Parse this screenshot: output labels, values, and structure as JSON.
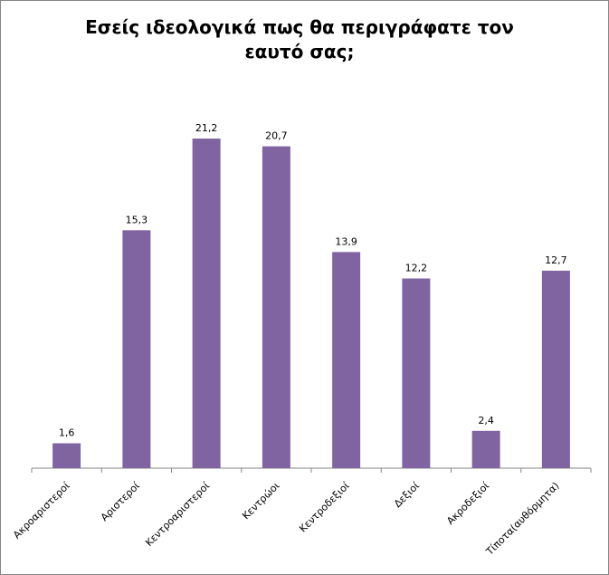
{
  "chart_data": {
    "type": "bar",
    "title": "Εσείς ιδεολογικά πως θα περιγράφατε τον εαυτό σας;",
    "categories": [
      "Ακροαριστεροί",
      "Αριστεροί",
      "Κεντροαριστεροί",
      "Κεντρώοι",
      "Κεντροδεξιοί",
      "Δεξιοί",
      "Ακροδεξιοί",
      "Τίποτα(αυθόρμητα)"
    ],
    "values": [
      1.6,
      15.3,
      21.2,
      20.7,
      13.9,
      12.2,
      2.4,
      12.7
    ],
    "value_labels": [
      "1,6",
      "15,3",
      "21,2",
      "20,7",
      "13,9",
      "12,2",
      "2,4",
      "12,7"
    ],
    "color": "#8064a2"
  }
}
